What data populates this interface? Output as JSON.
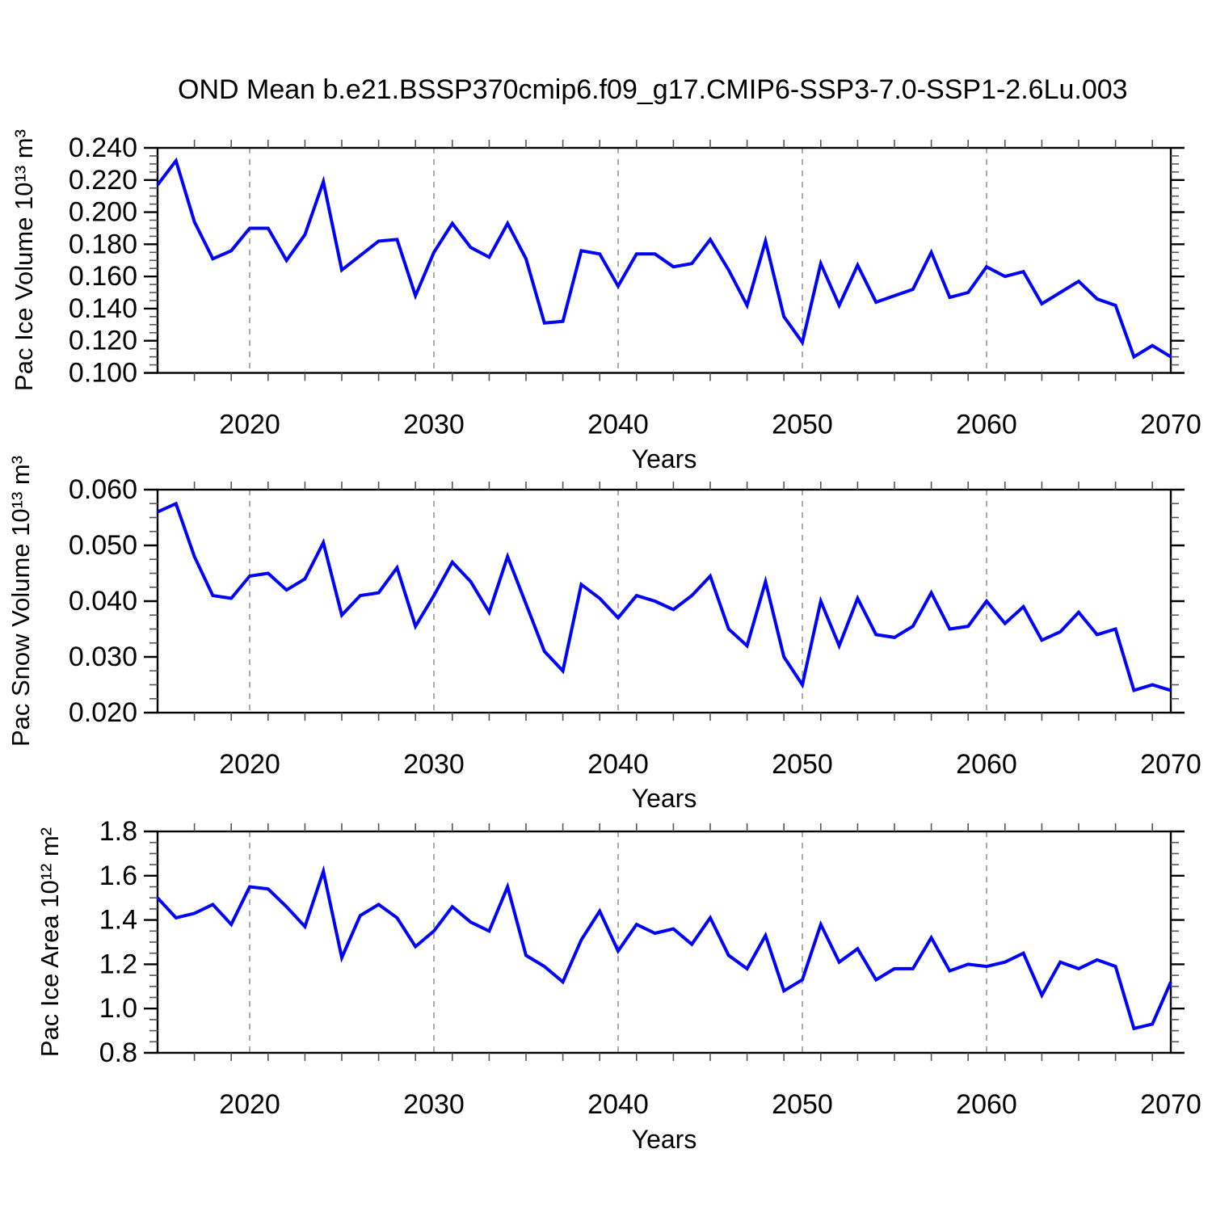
{
  "title": "OND Mean b.e21.BSSP370cmip6.f09_g17.CMIP6-SSP3-7.0-SSP1-2.6Lu.003",
  "x_axis": {
    "label": "Years",
    "range": [
      2015,
      2070
    ],
    "major_tick_labels": [
      "2020",
      "2030",
      "2040",
      "2050",
      "2060",
      "2070"
    ],
    "major_tick_years": [
      2020,
      2030,
      2040,
      2050,
      2060,
      2070
    ],
    "minor_tick_step_years": 2,
    "gridline_years": [
      2020,
      2030,
      2040,
      2050,
      2060
    ]
  },
  "style": {
    "line_color": "#0000ff",
    "grid_color": "#aaaaaa",
    "axis_color": "#000000",
    "minor_tick_color": "#555555",
    "text_color": "#000000"
  },
  "chart_data": [
    {
      "type": "line",
      "name": "pac-ice-volume",
      "ylabel": "Pac Ice Volume 10¹³ m³",
      "ylim": [
        0.1,
        0.24
      ],
      "ytick_step": 0.02,
      "yminor_step": 0.005,
      "ytick_decimals": 3,
      "ytick_labels": [
        "0.100",
        "0.120",
        "0.140",
        "0.160",
        "0.180",
        "0.200",
        "0.220",
        "0.240"
      ],
      "x": [
        2015,
        2016,
        2017,
        2018,
        2019,
        2020,
        2021,
        2022,
        2023,
        2024,
        2025,
        2026,
        2027,
        2028,
        2029,
        2030,
        2031,
        2032,
        2033,
        2034,
        2035,
        2036,
        2037,
        2038,
        2039,
        2040,
        2041,
        2042,
        2043,
        2044,
        2045,
        2046,
        2047,
        2048,
        2049,
        2050,
        2051,
        2052,
        2053,
        2054,
        2055,
        2056,
        2057,
        2058,
        2059,
        2060,
        2061,
        2062,
        2063,
        2064,
        2065,
        2066,
        2067,
        2068,
        2069,
        2070
      ],
      "y": [
        0.217,
        0.232,
        0.194,
        0.171,
        0.176,
        0.19,
        0.19,
        0.17,
        0.186,
        0.219,
        0.164,
        0.173,
        0.182,
        0.183,
        0.148,
        0.175,
        0.193,
        0.178,
        0.172,
        0.193,
        0.171,
        0.131,
        0.132,
        0.176,
        0.174,
        0.154,
        0.174,
        0.174,
        0.166,
        0.168,
        0.183,
        0.164,
        0.142,
        0.182,
        0.135,
        0.119,
        0.168,
        0.142,
        0.167,
        0.144,
        0.148,
        0.152,
        0.175,
        0.147,
        0.15,
        0.166,
        0.16,
        0.163,
        0.143,
        0.15,
        0.157,
        0.146,
        0.142,
        0.11,
        0.117,
        0.11
      ]
    },
    {
      "type": "line",
      "name": "pac-snow-volume",
      "ylabel": "Pac Snow Volume 10¹³ m³",
      "ylim": [
        0.02,
        0.06
      ],
      "ytick_step": 0.01,
      "yminor_step": 0.0025,
      "ytick_decimals": 3,
      "ytick_labels": [
        "0.020",
        "0.030",
        "0.040",
        "0.050",
        "0.060"
      ],
      "x": [
        2015,
        2016,
        2017,
        2018,
        2019,
        2020,
        2021,
        2022,
        2023,
        2024,
        2025,
        2026,
        2027,
        2028,
        2029,
        2030,
        2031,
        2032,
        2033,
        2034,
        2035,
        2036,
        2037,
        2038,
        2039,
        2040,
        2041,
        2042,
        2043,
        2044,
        2045,
        2046,
        2047,
        2048,
        2049,
        2050,
        2051,
        2052,
        2053,
        2054,
        2055,
        2056,
        2057,
        2058,
        2059,
        2060,
        2061,
        2062,
        2063,
        2064,
        2065,
        2066,
        2067,
        2068,
        2069,
        2070
      ],
      "y": [
        0.056,
        0.0575,
        0.048,
        0.041,
        0.0405,
        0.0445,
        0.045,
        0.042,
        0.044,
        0.0505,
        0.0375,
        0.041,
        0.0415,
        0.046,
        0.0355,
        0.041,
        0.047,
        0.0435,
        0.038,
        0.048,
        0.0395,
        0.031,
        0.0275,
        0.043,
        0.0405,
        0.037,
        0.041,
        0.04,
        0.0385,
        0.041,
        0.0445,
        0.035,
        0.032,
        0.0435,
        0.03,
        0.025,
        0.04,
        0.032,
        0.0405,
        0.034,
        0.0335,
        0.0355,
        0.0415,
        0.035,
        0.0355,
        0.04,
        0.036,
        0.039,
        0.033,
        0.0345,
        0.038,
        0.034,
        0.035,
        0.024,
        0.025,
        0.024
      ]
    },
    {
      "type": "line",
      "name": "pac-ice-area",
      "ylabel": "Pac Ice Area 10¹² m²",
      "ylim": [
        0.8,
        1.8
      ],
      "ytick_step": 0.2,
      "yminor_step": 0.05,
      "ytick_decimals": 1,
      "ytick_labels": [
        "0.8",
        "1.0",
        "1.2",
        "1.4",
        "1.6",
        "1.8"
      ],
      "x": [
        2015,
        2016,
        2017,
        2018,
        2019,
        2020,
        2021,
        2022,
        2023,
        2024,
        2025,
        2026,
        2027,
        2028,
        2029,
        2030,
        2031,
        2032,
        2033,
        2034,
        2035,
        2036,
        2037,
        2038,
        2039,
        2040,
        2041,
        2042,
        2043,
        2044,
        2045,
        2046,
        2047,
        2048,
        2049,
        2050,
        2051,
        2052,
        2053,
        2054,
        2055,
        2056,
        2057,
        2058,
        2059,
        2060,
        2061,
        2062,
        2063,
        2064,
        2065,
        2066,
        2067,
        2068,
        2069,
        2070
      ],
      "y": [
        1.5,
        1.41,
        1.43,
        1.47,
        1.38,
        1.55,
        1.54,
        1.46,
        1.37,
        1.62,
        1.23,
        1.42,
        1.47,
        1.41,
        1.28,
        1.35,
        1.46,
        1.39,
        1.35,
        1.55,
        1.24,
        1.19,
        1.12,
        1.31,
        1.44,
        1.26,
        1.38,
        1.34,
        1.36,
        1.29,
        1.41,
        1.24,
        1.18,
        1.33,
        1.08,
        1.13,
        1.38,
        1.21,
        1.27,
        1.13,
        1.18,
        1.18,
        1.32,
        1.17,
        1.2,
        1.19,
        1.21,
        1.25,
        1.06,
        1.21,
        1.18,
        1.22,
        1.19,
        0.91,
        0.93,
        1.12
      ]
    }
  ]
}
